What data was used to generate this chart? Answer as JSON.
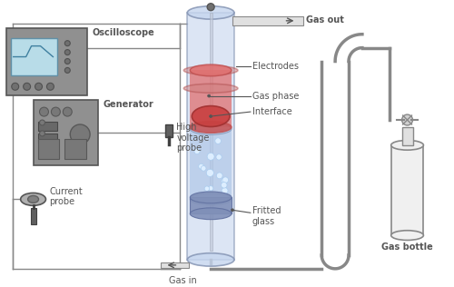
{
  "bg_color": "#ffffff",
  "line_color": "#555555",
  "tube_color": "#c5d5ee",
  "tube_edge": "#8090b0",
  "red_fill": "#e07070",
  "red_edge": "#c05050",
  "interface_fill": "#c84040",
  "blue_liquid": "#b0c8e8",
  "bubble_fill": "#ddeeff",
  "bubble_edge": "#aaccee",
  "osc_body": "#909090",
  "osc_screen": "#b8dce8",
  "gen_body": "#909090",
  "frit_fill": "#8090b8",
  "frit_edge": "#6070a0",
  "pipe_fill": "#e0e0e0",
  "pipe_edge": "#888888",
  "wire_color": "#888888",
  "bottle_fill": "#f0f0f0",
  "bottle_edge": "#888888",
  "dark_btn": "#707070",
  "labels": {
    "oscilloscope": "Oscilloscope",
    "high_voltage": "High\nvoltage\nprobe",
    "generator": "Generator",
    "current_probe": "Current\nprobe",
    "gas_out": "Gas out",
    "electrodes": "Electrodes",
    "gas_phase": "Gas phase",
    "interface": "Interface",
    "fritted_glass": "Fritted\nglass",
    "gas_in": "Gas in",
    "gas_bottle": "Gas bottle"
  },
  "figsize": [
    5.0,
    3.16
  ],
  "dpi": 100
}
